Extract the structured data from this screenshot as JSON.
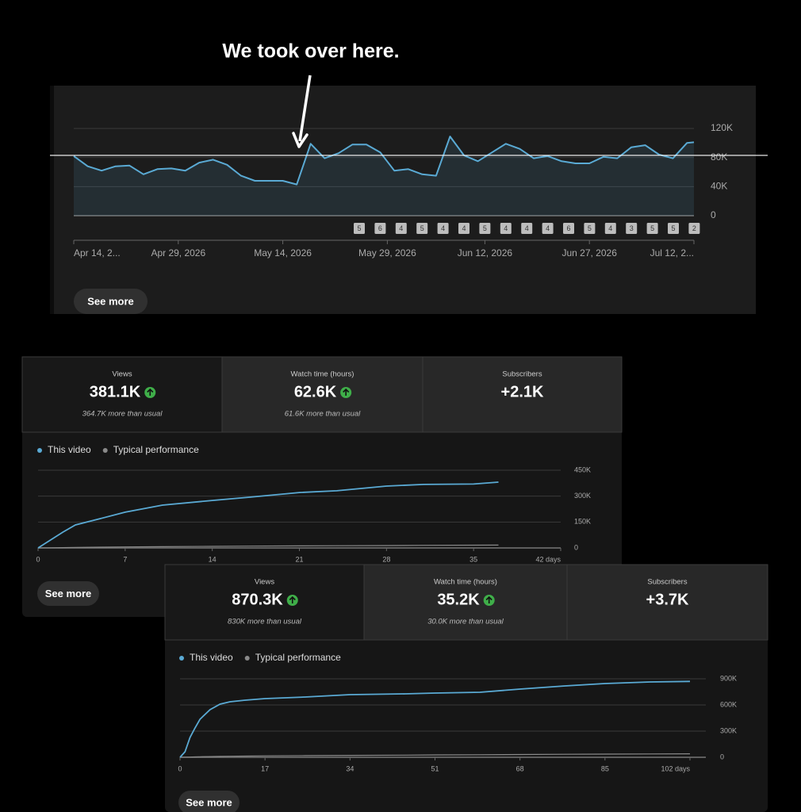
{
  "annotation": "We took over here.",
  "chart_data": [
    {
      "type": "area",
      "x": [
        "2026-04-14",
        "2026-04-16",
        "2026-04-18",
        "2026-04-20",
        "2026-04-22",
        "2026-04-24",
        "2026-04-26",
        "2026-04-28",
        "2026-04-30",
        "2026-05-02",
        "2026-05-04",
        "2026-05-06",
        "2026-05-08",
        "2026-05-10",
        "2026-05-12",
        "2026-05-14",
        "2026-05-16",
        "2026-05-18",
        "2026-05-20",
        "2026-05-22",
        "2026-05-24",
        "2026-05-26",
        "2026-05-28",
        "2026-05-30",
        "2026-06-01",
        "2026-06-03",
        "2026-06-05",
        "2026-06-07",
        "2026-06-09",
        "2026-06-11",
        "2026-06-13",
        "2026-06-15",
        "2026-06-17",
        "2026-06-19",
        "2026-06-21",
        "2026-06-23",
        "2026-06-25",
        "2026-06-27",
        "2026-06-29",
        "2026-07-01",
        "2026-07-03",
        "2026-07-05",
        "2026-07-07",
        "2026-07-09",
        "2026-07-11",
        "2026-07-12"
      ],
      "values": [
        82000,
        68000,
        62000,
        68000,
        69000,
        57000,
        64000,
        65000,
        62000,
        73000,
        77000,
        70000,
        55000,
        48000,
        48000,
        48000,
        43000,
        99000,
        79000,
        86000,
        98000,
        98000,
        87000,
        62000,
        64000,
        57000,
        55000,
        109000,
        83000,
        75000,
        87000,
        99000,
        92000,
        79000,
        82000,
        75000,
        72000,
        72000,
        81000,
        79000,
        94000,
        97000,
        84000,
        79000,
        100000,
        101000
      ],
      "color": "#5aaad4",
      "xlim": [
        "2026-04-14",
        "2026-07-12"
      ],
      "xticks": [
        {
          "value": "2026-04-14",
          "label": "Apr 14, 2..."
        },
        {
          "value": "2026-04-29",
          "label": "Apr 29, 2026"
        },
        {
          "value": "2026-05-14",
          "label": "May 14, 2026"
        },
        {
          "value": "2026-05-29",
          "label": "May 29, 2026"
        },
        {
          "value": "2026-06-12",
          "label": "Jun 12, 2026"
        },
        {
          "value": "2026-06-27",
          "label": "Jun 27, 2026"
        },
        {
          "value": "2026-07-12",
          "label": "Jul 12, 2..."
        }
      ],
      "ylim": [
        0,
        120000
      ],
      "yticks": [
        0,
        {
          "value": 40000,
          "label": "40K"
        },
        {
          "value": 80000,
          "label": "80K"
        },
        {
          "value": 120000,
          "label": "120K"
        }
      ],
      "grid": true,
      "reference_line": 83000,
      "badges": [
        5,
        6,
        4,
        5,
        4,
        4,
        5,
        4,
        4,
        4,
        6,
        5,
        4,
        3,
        5,
        5,
        2
      ],
      "button": "See more"
    },
    {
      "type": "line",
      "metrics": [
        {
          "label": "Views",
          "value": "381.1K",
          "note": "364.7K more than usual",
          "trend": "up"
        },
        {
          "label": "Watch time (hours)",
          "value": "62.6K",
          "note": "61.6K more than usual",
          "trend": "up"
        },
        {
          "label": "Subscribers",
          "value": "+2.1K"
        }
      ],
      "x": [
        0,
        1,
        2,
        3,
        5,
        7,
        10,
        14,
        17,
        21,
        24,
        28,
        31,
        35,
        37
      ],
      "series": [
        {
          "name": "This video",
          "color": "#5aaad4",
          "values": [
            0,
            46000,
            92000,
            133000,
            170000,
            207000,
            248000,
            275000,
            294000,
            321000,
            331000,
            358000,
            368000,
            370000,
            381100
          ]
        },
        {
          "name": "Typical performance",
          "color": "#8a8a8a",
          "values": [
            0,
            1000,
            2000,
            3000,
            4500,
            6000,
            7500,
            9000,
            10500,
            12000,
            13000,
            14000,
            15000,
            16000,
            16400
          ]
        }
      ],
      "xlim": [
        0,
        42
      ],
      "xticks": [
        0,
        7,
        14,
        21,
        28,
        35,
        {
          "value": 42,
          "label": "42 days"
        }
      ],
      "ylim": [
        0,
        450000
      ],
      "yticks": [
        0,
        {
          "value": 150000,
          "label": "150K"
        },
        {
          "value": 300000,
          "label": "300K"
        },
        {
          "value": 450000,
          "label": "450K"
        }
      ],
      "grid": true,
      "button": "See more"
    },
    {
      "type": "line",
      "metrics": [
        {
          "label": "Views",
          "value": "870.3K",
          "note": "830K more than usual",
          "trend": "up"
        },
        {
          "label": "Watch time (hours)",
          "value": "35.2K",
          "note": "30.0K more than usual",
          "trend": "up"
        },
        {
          "label": "Subscribers",
          "value": "+3.7K"
        }
      ],
      "x": [
        0,
        1,
        2,
        3,
        4,
        6,
        8,
        10,
        13,
        17,
        25,
        34,
        45,
        51,
        60,
        68,
        77,
        85,
        94,
        102
      ],
      "series": [
        {
          "name": "This video",
          "color": "#5aaad4",
          "values": [
            0,
            64000,
            227000,
            336000,
            436000,
            545000,
            609000,
            636000,
            655000,
            673000,
            691000,
            718000,
            727000,
            736000,
            745000,
            782000,
            818000,
            845000,
            864000,
            870300
          ]
        },
        {
          "name": "Typical performance",
          "color": "#8a8a8a",
          "values": [
            0,
            1500,
            3000,
            4500,
            6000,
            8000,
            10000,
            12000,
            14000,
            16000,
            19000,
            22000,
            25000,
            27000,
            29500,
            32000,
            34500,
            36500,
            38500,
            40300
          ]
        }
      ],
      "xlim": [
        0,
        102
      ],
      "xticks": [
        0,
        17,
        34,
        51,
        68,
        85,
        {
          "value": 102,
          "label": "102 days"
        }
      ],
      "ylim": [
        0,
        900000
      ],
      "yticks": [
        0,
        {
          "value": 300000,
          "label": "300K"
        },
        {
          "value": 600000,
          "label": "600K"
        },
        {
          "value": 900000,
          "label": "900K"
        }
      ],
      "grid": true,
      "button": "See more"
    }
  ]
}
